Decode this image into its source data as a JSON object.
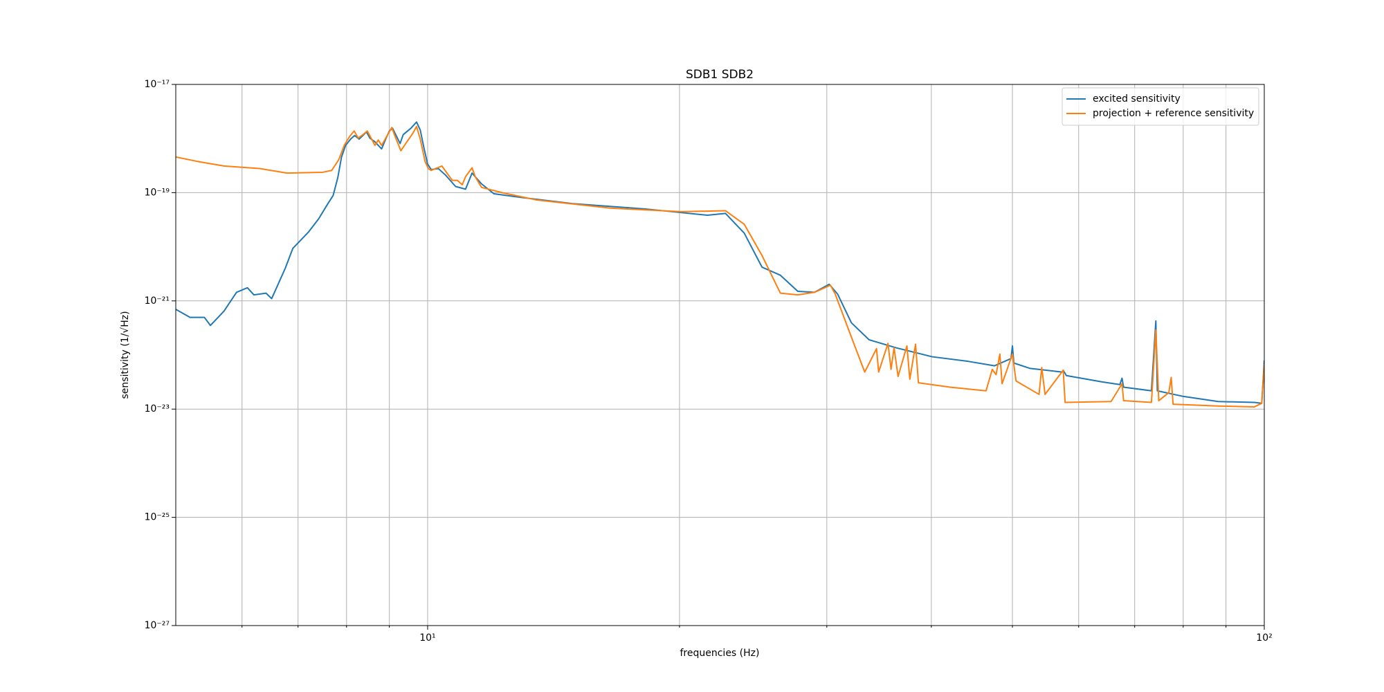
{
  "chart_data": {
    "type": "line",
    "title": "SDB1 SDB2",
    "xlabel": "frequencies (Hz)",
    "ylabel": "sensitivity (1/√Hz)",
    "xscale": "log",
    "yscale": "log",
    "xlim": [
      5,
      100
    ],
    "ylim": [
      1e-27,
      1e-17
    ],
    "xticks": [
      {
        "value": 10,
        "label": "10¹"
      },
      {
        "value": 100,
        "label": "10²"
      }
    ],
    "xminorticks": [
      6,
      7,
      8,
      9,
      20,
      30,
      40,
      50,
      60,
      70,
      80,
      90
    ],
    "yticks": [
      {
        "value": 1e-27,
        "label": "10⁻²⁷"
      },
      {
        "value": 1e-25,
        "label": "10⁻²⁵"
      },
      {
        "value": 1e-23,
        "label": "10⁻²³"
      },
      {
        "value": 1e-21,
        "label": "10⁻²¹"
      },
      {
        "value": 1e-19,
        "label": "10⁻¹⁹"
      },
      {
        "value": 1e-17,
        "label": "10⁻¹⁷"
      }
    ],
    "grid": true,
    "legend": "upper right",
    "series": [
      {
        "name": "excited sensitivity",
        "color": "#1f77b4",
        "x": [
          5.0,
          5.2,
          5.41,
          5.5,
          5.71,
          5.91,
          6.09,
          6.2,
          6.41,
          6.51,
          6.76,
          6.9,
          7.2,
          7.41,
          7.6,
          7.71,
          7.81,
          7.89,
          7.98,
          8.09,
          8.18,
          8.28,
          8.37,
          8.45,
          8.53,
          8.65,
          8.81,
          8.91,
          9.0,
          9.08,
          9.27,
          9.35,
          9.55,
          9.7,
          9.8,
          9.9,
          10,
          10.1,
          10.3,
          10.5,
          10.8,
          11.1,
          11.3,
          11.6,
          12.0,
          12.9,
          14.9,
          18.2,
          21.6,
          22.7,
          23.9,
          25.1,
          26.4,
          27.7,
          29.0,
          30.2,
          30.9,
          32.1,
          33.7,
          36.3,
          40.1,
          44.2,
          47.6,
          49.8,
          50.0,
          50.2,
          52.5,
          57.3,
          57.5,
          58.0,
          64.0,
          67.2,
          67.6,
          67.9,
          73.3,
          74.2,
          74.5,
          79.8,
          88.1,
          97.3,
          99.3,
          100
        ],
        "values": [
          6.98e-22,
          4.95e-22,
          4.95e-22,
          3.52e-22,
          6.47e-22,
          1.44e-21,
          1.75e-21,
          1.29e-21,
          1.39e-21,
          1.1e-21,
          4.04e-21,
          9.33e-21,
          1.85e-20,
          3.29e-20,
          6.28e-20,
          8.85e-20,
          1.9e-19,
          4.56e-19,
          7.48e-19,
          9.77e-19,
          1.14e-18,
          9.77e-19,
          1.14e-18,
          1.33e-18,
          1.02e-18,
          8.71e-19,
          6.43e-19,
          9.77e-19,
          1.38e-18,
          1.55e-18,
          8.07e-19,
          1.18e-18,
          1.55e-18,
          2.02e-18,
          1.43e-18,
          6.68e-19,
          3.36e-19,
          2.67e-19,
          2.78e-19,
          2.13e-19,
          1.3e-19,
          1.16e-19,
          2.3e-19,
          1.45e-19,
          9.55e-20,
          8.2e-20,
          6.28e-20,
          5e-20,
          3.83e-20,
          4.13e-20,
          1.79e-20,
          4.2e-21,
          2.98e-21,
          1.5e-21,
          1.44e-21,
          2.03e-21,
          1.34e-21,
          3.94e-22,
          1.91e-22,
          1.36e-22,
          9.27e-23,
          7.66e-23,
          6.32e-23,
          8.59e-23,
          1.47e-22,
          7.1e-23,
          5.65e-23,
          4.84e-23,
          5.24e-23,
          4.16e-23,
          3.18e-23,
          2.84e-23,
          3.72e-23,
          2.54e-23,
          2.18e-23,
          4.26e-22,
          2.18e-23,
          1.73e-23,
          1.38e-23,
          1.33e-23,
          1.28e-23,
          7.96e-23
        ]
      },
      {
        "name": "projection + reference sensitivity",
        "color": "#ff7f0e",
        "x": [
          5.0,
          5.31,
          5.71,
          6.31,
          6.79,
          7.49,
          7.68,
          7.83,
          7.95,
          8.07,
          8.17,
          8.26,
          8.37,
          8.47,
          8.65,
          8.73,
          8.81,
          9.06,
          9.17,
          9.29,
          9.4,
          9.61,
          9.7,
          9.8,
          9.93,
          10.02,
          10.1,
          10.4,
          10.7,
          10.85,
          11.0,
          11.1,
          11.3,
          11.4,
          11.6,
          12.3,
          13.5,
          16.5,
          20.1,
          22.7,
          23.9,
          25.1,
          26.4,
          27.7,
          29.0,
          30.3,
          30.7,
          32.1,
          33.3,
          34.4,
          34.6,
          35.5,
          35.8,
          36.1,
          36.5,
          37.4,
          37.7,
          38.3,
          38.6,
          42.1,
          46.5,
          47.3,
          47.8,
          48.3,
          48.6,
          50.0,
          50.5,
          53.8,
          54.2,
          54.7,
          57.5,
          57.8,
          65.6,
          67.6,
          67.9,
          73.3,
          74.2,
          74.8,
          76.9,
          77.4,
          77.8,
          88.1,
          97.3,
          99.3,
          100
        ],
        "values": [
          4.56e-19,
          3.77e-19,
          3.11e-19,
          2.78e-19,
          2.3e-19,
          2.38e-19,
          2.58e-19,
          4.06e-19,
          7.48e-19,
          1.1e-18,
          1.38e-18,
          1.02e-18,
          1.18e-18,
          1.38e-18,
          7.48e-19,
          9.4e-19,
          7.48e-19,
          1.6e-18,
          9.77e-19,
          5.96e-19,
          7.78e-19,
          1.28e-18,
          1.67e-18,
          9.77e-19,
          3.77e-19,
          2.78e-19,
          2.58e-19,
          3.11e-19,
          1.69e-19,
          1.69e-19,
          1.4e-19,
          1.97e-19,
          2.88e-19,
          1.97e-19,
          1.25e-19,
          9.93e-20,
          7.31e-20,
          5.19e-20,
          4.46e-20,
          4.63e-20,
          2.61e-20,
          6.89e-21,
          1.39e-21,
          1.29e-21,
          1.44e-21,
          1.95e-21,
          1.34e-21,
          2.14e-22,
          4.84e-23,
          1.31e-22,
          4.84e-23,
          1.64e-22,
          5.43e-23,
          1.36e-22,
          4.01e-23,
          1.47e-22,
          3.57e-23,
          1.58e-22,
          3.07e-23,
          2.54e-23,
          2.18e-23,
          5.43e-23,
          4.33e-23,
          1.04e-22,
          2.95e-23,
          1.04e-22,
          3.31e-23,
          1.87e-23,
          5.86e-23,
          1.87e-23,
          5.24e-23,
          1.33e-23,
          1.38e-23,
          2.95e-23,
          1.43e-23,
          1.33e-23,
          2.91e-22,
          1.43e-23,
          2.02e-23,
          3.85e-23,
          1.23e-23,
          1.14e-23,
          1.1e-23,
          1.28e-23,
          6.82e-23
        ]
      }
    ]
  }
}
